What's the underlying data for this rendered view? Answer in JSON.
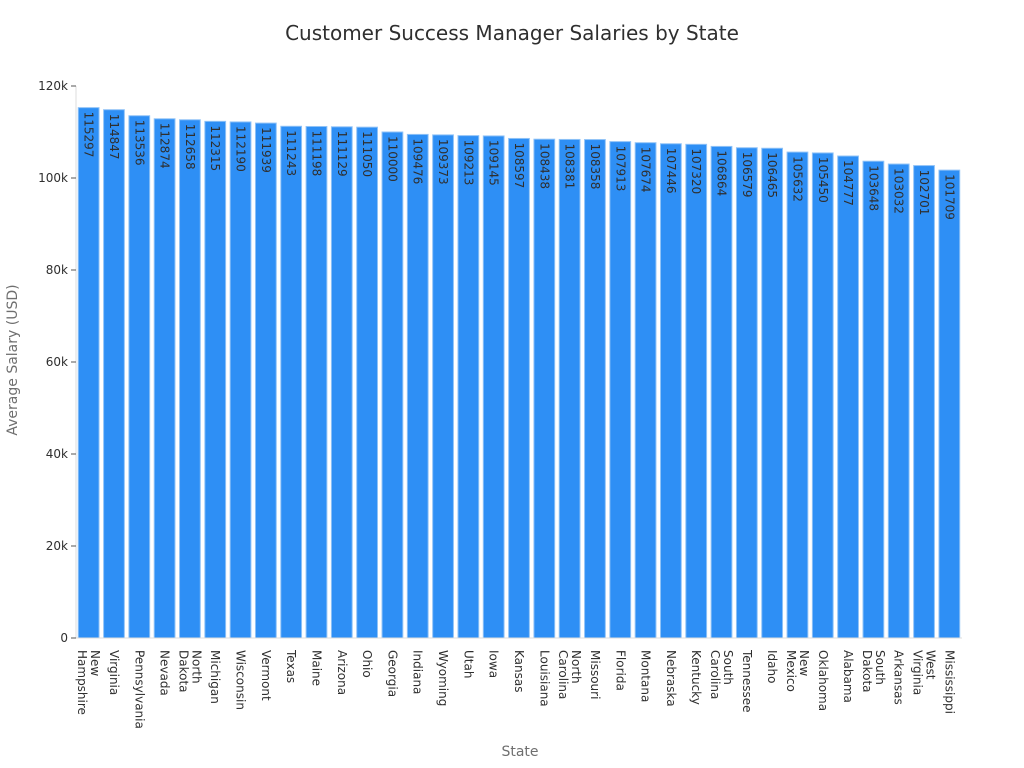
{
  "chart_data": {
    "type": "bar",
    "title": "Customer Success Manager Salaries by State",
    "xlabel": "State",
    "ylabel": "Average Salary (USD)",
    "ylim": [
      0,
      120000
    ],
    "yticks": [
      0,
      20000,
      40000,
      60000,
      80000,
      100000,
      120000
    ],
    "ytick_labels": [
      "0",
      "20k",
      "40k",
      "60k",
      "80k",
      "100k",
      "120k"
    ],
    "categories": [
      "New Hampshire",
      "Virginia",
      "Pennsylvania",
      "Nevada",
      "North Dakota",
      "Michigan",
      "Wisconsin",
      "Vermont",
      "Texas",
      "Maine",
      "Arizona",
      "Ohio",
      "Georgia",
      "Indiana",
      "Wyoming",
      "Utah",
      "Iowa",
      "Kansas",
      "Louisiana",
      "North Carolina",
      "Missouri",
      "Florida",
      "Montana",
      "Nebraska",
      "Kentucky",
      "South Carolina",
      "Tennessee",
      "Idaho",
      "New Mexico",
      "Oklahoma",
      "Alabama",
      "South Dakota",
      "Arkansas",
      "West Virginia",
      "Mississippi"
    ],
    "values": [
      115297,
      114847,
      113536,
      112874,
      112658,
      112315,
      112190,
      111939,
      111243,
      111198,
      111129,
      111050,
      110000,
      109476,
      109373,
      109213,
      109145,
      108597,
      108438,
      108381,
      108358,
      107913,
      107674,
      107446,
      107320,
      106864,
      106579,
      106465,
      105632,
      105450,
      104777,
      103648,
      103032,
      102701,
      101709
    ],
    "bar_color": "#2e8ff5",
    "bar_edge_color": "#8fc2f7",
    "grid": false,
    "legend": false,
    "data_labels": "inside-top-rotated"
  }
}
